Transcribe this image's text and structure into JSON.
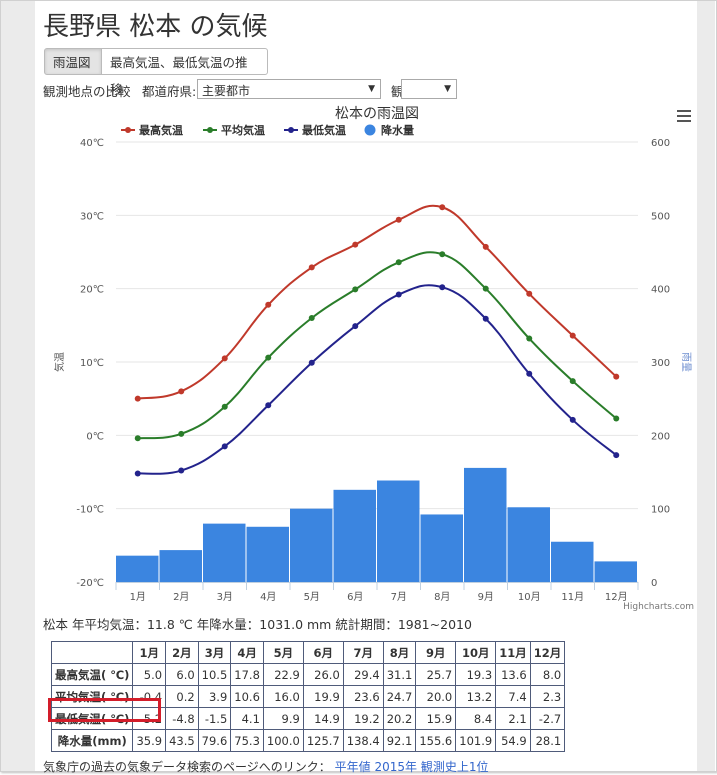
{
  "page": {
    "title": "長野県 松本 の気候",
    "tabs": [
      "雨温図",
      "最高気温、最低気温の推移"
    ],
    "filters": {
      "compare_label": "観測地点の比較",
      "prefecture_label": "都道府県:",
      "prefecture_value": "主要都市",
      "station_label": "観測地点:",
      "station_value": ""
    },
    "summary": "松本 年平均気温：11.8 ℃  年降水量：1031.0 mm  統計期間：1981~2010",
    "footer": {
      "text": "気象庁の過去の気象データ検索のページへのリンク：",
      "links": [
        "平年値",
        "2015年",
        "観測史上1位"
      ]
    },
    "credit": "Highcharts.com"
  },
  "chart_data": {
    "type": "bar",
    "title": "松本の雨温図",
    "categories": [
      "1月",
      "2月",
      "3月",
      "4月",
      "5月",
      "6月",
      "7月",
      "8月",
      "9月",
      "10月",
      "11月",
      "12月"
    ],
    "ylabel": "気温",
    "ylabel_right": "雨量",
    "ylim": [
      -20,
      40
    ],
    "ylim_right": [
      0,
      600
    ],
    "yticks_left": [
      "40℃",
      "30℃",
      "20℃",
      "10℃",
      "0℃",
      "-10℃",
      "-20℃"
    ],
    "yticks_right": [
      "600",
      "500",
      "400",
      "300",
      "200",
      "100",
      "0"
    ],
    "legend_position": "top-left",
    "series": [
      {
        "name": "最高気温",
        "type": "line",
        "color": "#c0392b",
        "values": [
          5.0,
          6.0,
          10.5,
          17.8,
          22.9,
          26.0,
          29.4,
          31.1,
          25.7,
          19.3,
          13.6,
          8.0
        ]
      },
      {
        "name": "平均気温",
        "type": "line",
        "color": "#2a7d2a",
        "values": [
          -0.4,
          0.2,
          3.9,
          10.6,
          16.0,
          19.9,
          23.6,
          24.7,
          20.0,
          13.2,
          7.4,
          2.3
        ]
      },
      {
        "name": "最低気温",
        "type": "line",
        "color": "#23238c",
        "values": [
          -5.2,
          -4.8,
          -1.5,
          4.1,
          9.9,
          14.9,
          19.2,
          20.2,
          15.9,
          8.4,
          2.1,
          -2.7
        ]
      },
      {
        "name": "降水量",
        "type": "bar",
        "color": "#3b85e0",
        "values": [
          35.9,
          43.5,
          79.6,
          75.3,
          100.0,
          125.7,
          138.4,
          92.1,
          155.6,
          101.9,
          54.9,
          28.1
        ]
      }
    ]
  },
  "table": {
    "header": [
      "",
      "1月",
      "2月",
      "3月",
      "4月",
      "5月",
      "6月",
      "7月",
      "8月",
      "9月",
      "10月",
      "11月",
      "12月"
    ],
    "rows": [
      [
        "最高気温( ℃)",
        "5.0",
        "6.0",
        "10.5",
        "17.8",
        "22.9",
        "26.0",
        "29.4",
        "31.1",
        "25.7",
        "19.3",
        "13.6",
        "8.0"
      ],
      [
        "平均気温( ℃)",
        "-0.4",
        "0.2",
        "3.9",
        "10.6",
        "16.0",
        "19.9",
        "23.6",
        "24.7",
        "20.0",
        "13.2",
        "7.4",
        "2.3"
      ],
      [
        "最低気温( ℃)",
        "-5.2",
        "-4.8",
        "-1.5",
        "4.1",
        "9.9",
        "14.9",
        "19.2",
        "20.2",
        "15.9",
        "8.4",
        "2.1",
        "-2.7"
      ],
      [
        "降水量(mm)",
        "35.9",
        "43.5",
        "79.6",
        "75.3",
        "100.0",
        "125.7",
        "138.4",
        "92.1",
        "155.6",
        "101.9",
        "54.9",
        "28.1"
      ]
    ]
  },
  "colors": {
    "highlight_box": "#d31d2a",
    "link": "#3366cc",
    "precip_bar": "#3b85e0"
  }
}
